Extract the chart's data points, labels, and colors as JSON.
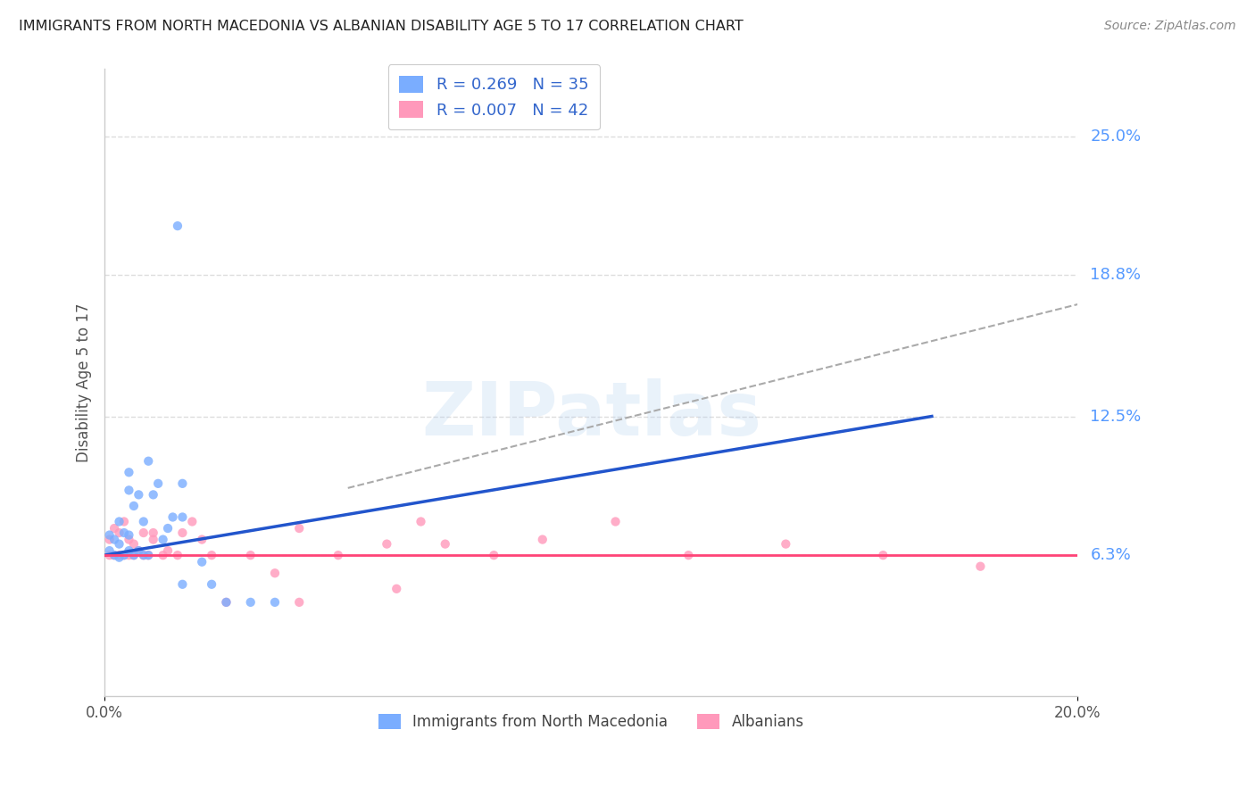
{
  "title": "IMMIGRANTS FROM NORTH MACEDONIA VS ALBANIAN DISABILITY AGE 5 TO 17 CORRELATION CHART",
  "source": "Source: ZipAtlas.com",
  "xlabel": "",
  "ylabel": "Disability Age 5 to 17",
  "xlim": [
    0.0,
    0.2
  ],
  "ylim": [
    0.0,
    0.28
  ],
  "xtick_labels": [
    "0.0%",
    "20.0%"
  ],
  "ytick_positions": [
    0.063,
    0.125,
    0.188,
    0.25
  ],
  "ytick_labels": [
    "6.3%",
    "12.5%",
    "18.8%",
    "25.0%"
  ],
  "legend1_label": "R = 0.269   N = 35",
  "legend2_label": "R = 0.007   N = 42",
  "legend_label1": "Immigrants from North Macedonia",
  "legend_label2": "Albanians",
  "blue_color": "#7aadff",
  "pink_color": "#ff99bb",
  "trend_blue_color": "#2255cc",
  "trend_pink_color": "#ff4477",
  "trend_gray_color": "#aaaaaa",
  "background_color": "#ffffff",
  "grid_color": "#dddddd",
  "watermark": "ZIPatlas",
  "blue_R": 0.269,
  "blue_N": 35,
  "pink_R": 0.007,
  "pink_N": 42,
  "blue_trend_x": [
    0.0,
    0.17
  ],
  "blue_trend_y": [
    0.063,
    0.125
  ],
  "gray_trend_x": [
    0.05,
    0.2
  ],
  "gray_trend_y": [
    0.093,
    0.175
  ],
  "pink_trend_x": [
    0.0,
    0.2
  ],
  "pink_trend_y": [
    0.063,
    0.063
  ],
  "blue_scatter_x": [
    0.001,
    0.001,
    0.002,
    0.002,
    0.003,
    0.003,
    0.003,
    0.004,
    0.004,
    0.005,
    0.005,
    0.005,
    0.005,
    0.006,
    0.006,
    0.007,
    0.007,
    0.008,
    0.008,
    0.009,
    0.009,
    0.01,
    0.011,
    0.012,
    0.013,
    0.014,
    0.016,
    0.02,
    0.022,
    0.025,
    0.03,
    0.035,
    0.015,
    0.016,
    0.016
  ],
  "blue_scatter_y": [
    0.065,
    0.072,
    0.063,
    0.07,
    0.062,
    0.068,
    0.078,
    0.063,
    0.073,
    0.065,
    0.072,
    0.092,
    0.1,
    0.063,
    0.085,
    0.065,
    0.09,
    0.063,
    0.078,
    0.063,
    0.105,
    0.09,
    0.095,
    0.07,
    0.075,
    0.08,
    0.05,
    0.06,
    0.05,
    0.042,
    0.042,
    0.042,
    0.21,
    0.08,
    0.095
  ],
  "pink_scatter_x": [
    0.001,
    0.001,
    0.002,
    0.002,
    0.003,
    0.003,
    0.004,
    0.004,
    0.005,
    0.005,
    0.006,
    0.006,
    0.007,
    0.008,
    0.008,
    0.009,
    0.01,
    0.01,
    0.012,
    0.013,
    0.015,
    0.016,
    0.018,
    0.02,
    0.022,
    0.03,
    0.035,
    0.04,
    0.048,
    0.058,
    0.065,
    0.07,
    0.08,
    0.09,
    0.105,
    0.12,
    0.14,
    0.16,
    0.18,
    0.06,
    0.04,
    0.025
  ],
  "pink_scatter_y": [
    0.063,
    0.07,
    0.063,
    0.075,
    0.063,
    0.073,
    0.063,
    0.078,
    0.063,
    0.07,
    0.063,
    0.068,
    0.065,
    0.063,
    0.073,
    0.063,
    0.07,
    0.073,
    0.063,
    0.065,
    0.063,
    0.073,
    0.078,
    0.07,
    0.063,
    0.063,
    0.055,
    0.075,
    0.063,
    0.068,
    0.078,
    0.068,
    0.063,
    0.07,
    0.078,
    0.063,
    0.068,
    0.063,
    0.058,
    0.048,
    0.042,
    0.042
  ]
}
